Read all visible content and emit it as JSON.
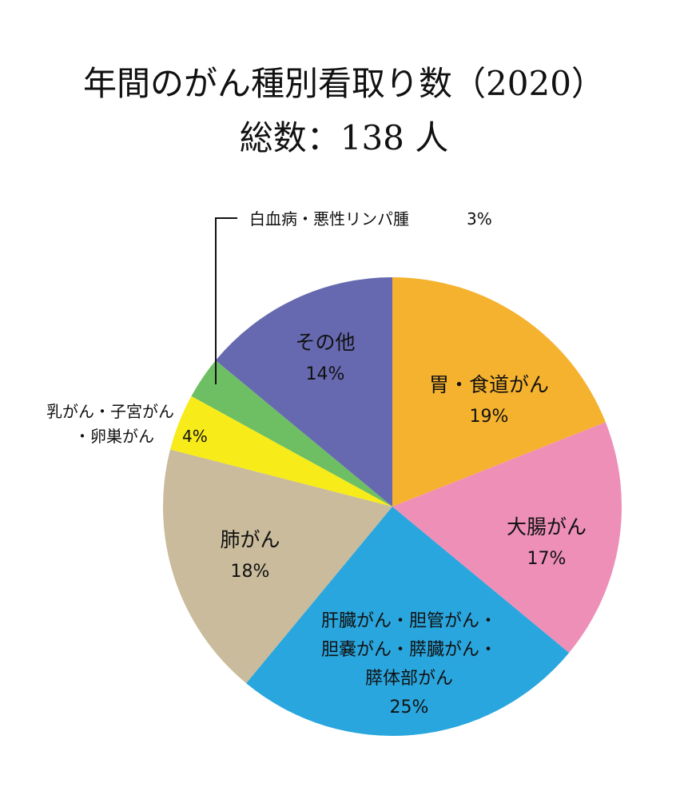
{
  "title": {
    "line1": "年間のがん種別看取り数（2020）",
    "line2": "総数：138 人"
  },
  "chart_data": {
    "type": "pie",
    "title": "年間のがん種別看取り数（2020）",
    "subtitle": "総数：138 人",
    "unit": "%",
    "slices": [
      {
        "label_lines": [
          "胃・食道がん"
        ],
        "value": 19,
        "pct_label": "19%",
        "color": "#F5B22E"
      },
      {
        "label_lines": [
          "大腸がん"
        ],
        "value": 17,
        "pct_label": "17%",
        "color": "#EE8FB8"
      },
      {
        "label_lines": [
          "肝臓がん・胆管がん・",
          "胆嚢がん・膵臓がん・",
          "膵体部がん"
        ],
        "value": 25,
        "pct_label": "25%",
        "color": "#2AA6DE"
      },
      {
        "label_lines": [
          "肺がん"
        ],
        "value": 18,
        "pct_label": "18%",
        "color": "#C9BB9B"
      },
      {
        "label_lines": [
          "乳がん・子宮がん",
          "・卵巣がん"
        ],
        "value": 4,
        "pct_label": "4%",
        "color": "#F7EB1A"
      },
      {
        "label_lines": [
          "白血病・悪性リンパ腫"
        ],
        "value": 3,
        "pct_label": "3%",
        "color": "#6EBE64"
      },
      {
        "label_lines": [
          "その他"
        ],
        "value": 14,
        "pct_label": "14%",
        "color": "#6669B0"
      }
    ]
  }
}
